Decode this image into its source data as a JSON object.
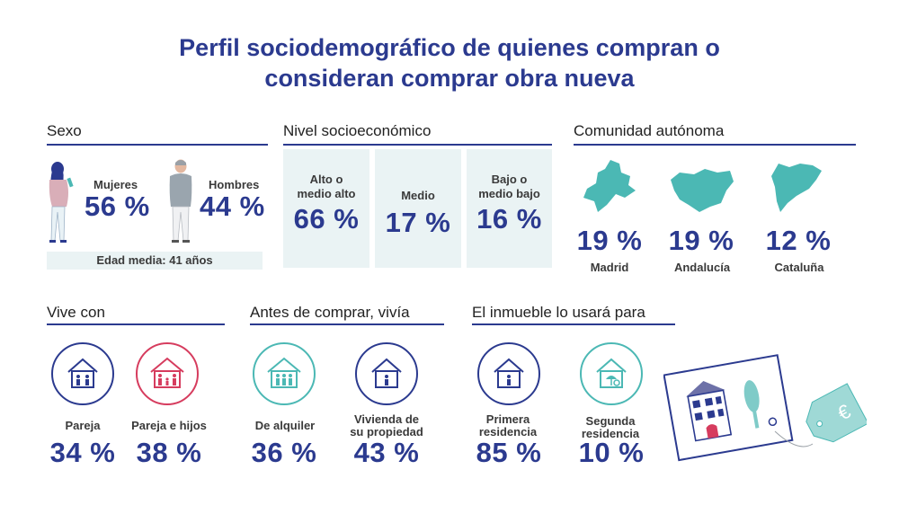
{
  "title_line1": "Perfil sociodemográfico de quienes compran o",
  "title_line2": "consideran comprar obra nueva",
  "sexo": {
    "heading": "Sexo",
    "women_label": "Mujeres",
    "women_pct": "56 %",
    "men_label": "Hombres",
    "men_pct": "44 %",
    "age": "Edad media: 41 años"
  },
  "nivel": {
    "heading": "Nivel socioeconómico",
    "items": [
      {
        "label1": "Alto o",
        "label2": "medio alto",
        "pct": "66 %"
      },
      {
        "label1": "Medio",
        "label2": "",
        "pct": "17 %"
      },
      {
        "label1": "Bajo o",
        "label2": "medio bajo",
        "pct": "16 %"
      }
    ]
  },
  "comunidad": {
    "heading": "Comunidad autónoma",
    "items": [
      {
        "pct": "19 %",
        "name": "Madrid"
      },
      {
        "pct": "19 %",
        "name": "Andalucía"
      },
      {
        "pct": "12 %",
        "name": "Cataluña"
      }
    ]
  },
  "vive": {
    "heading": "Vive con",
    "items": [
      {
        "label": "Pareja",
        "pct": "34 %"
      },
      {
        "label": "Pareja e hijos",
        "pct": "38 %"
      }
    ]
  },
  "antes": {
    "heading": "Antes de comprar, vivía",
    "items": [
      {
        "label1": "De alquiler",
        "label2": "",
        "pct": "36 %"
      },
      {
        "label1": "Vivienda de",
        "label2": "su propiedad",
        "pct": "43 %"
      }
    ]
  },
  "uso": {
    "heading": "El inmueble lo usará para",
    "items": [
      {
        "label1": "Primera",
        "label2": "residencia",
        "pct": "85 %"
      },
      {
        "label1": "Segunda",
        "label2": "residencia",
        "pct": "10 %"
      }
    ]
  },
  "colors": {
    "navy": "#2b3a8f",
    "teal": "#4bb8b4",
    "red": "#d63c5e",
    "light": "#eaf3f4"
  }
}
